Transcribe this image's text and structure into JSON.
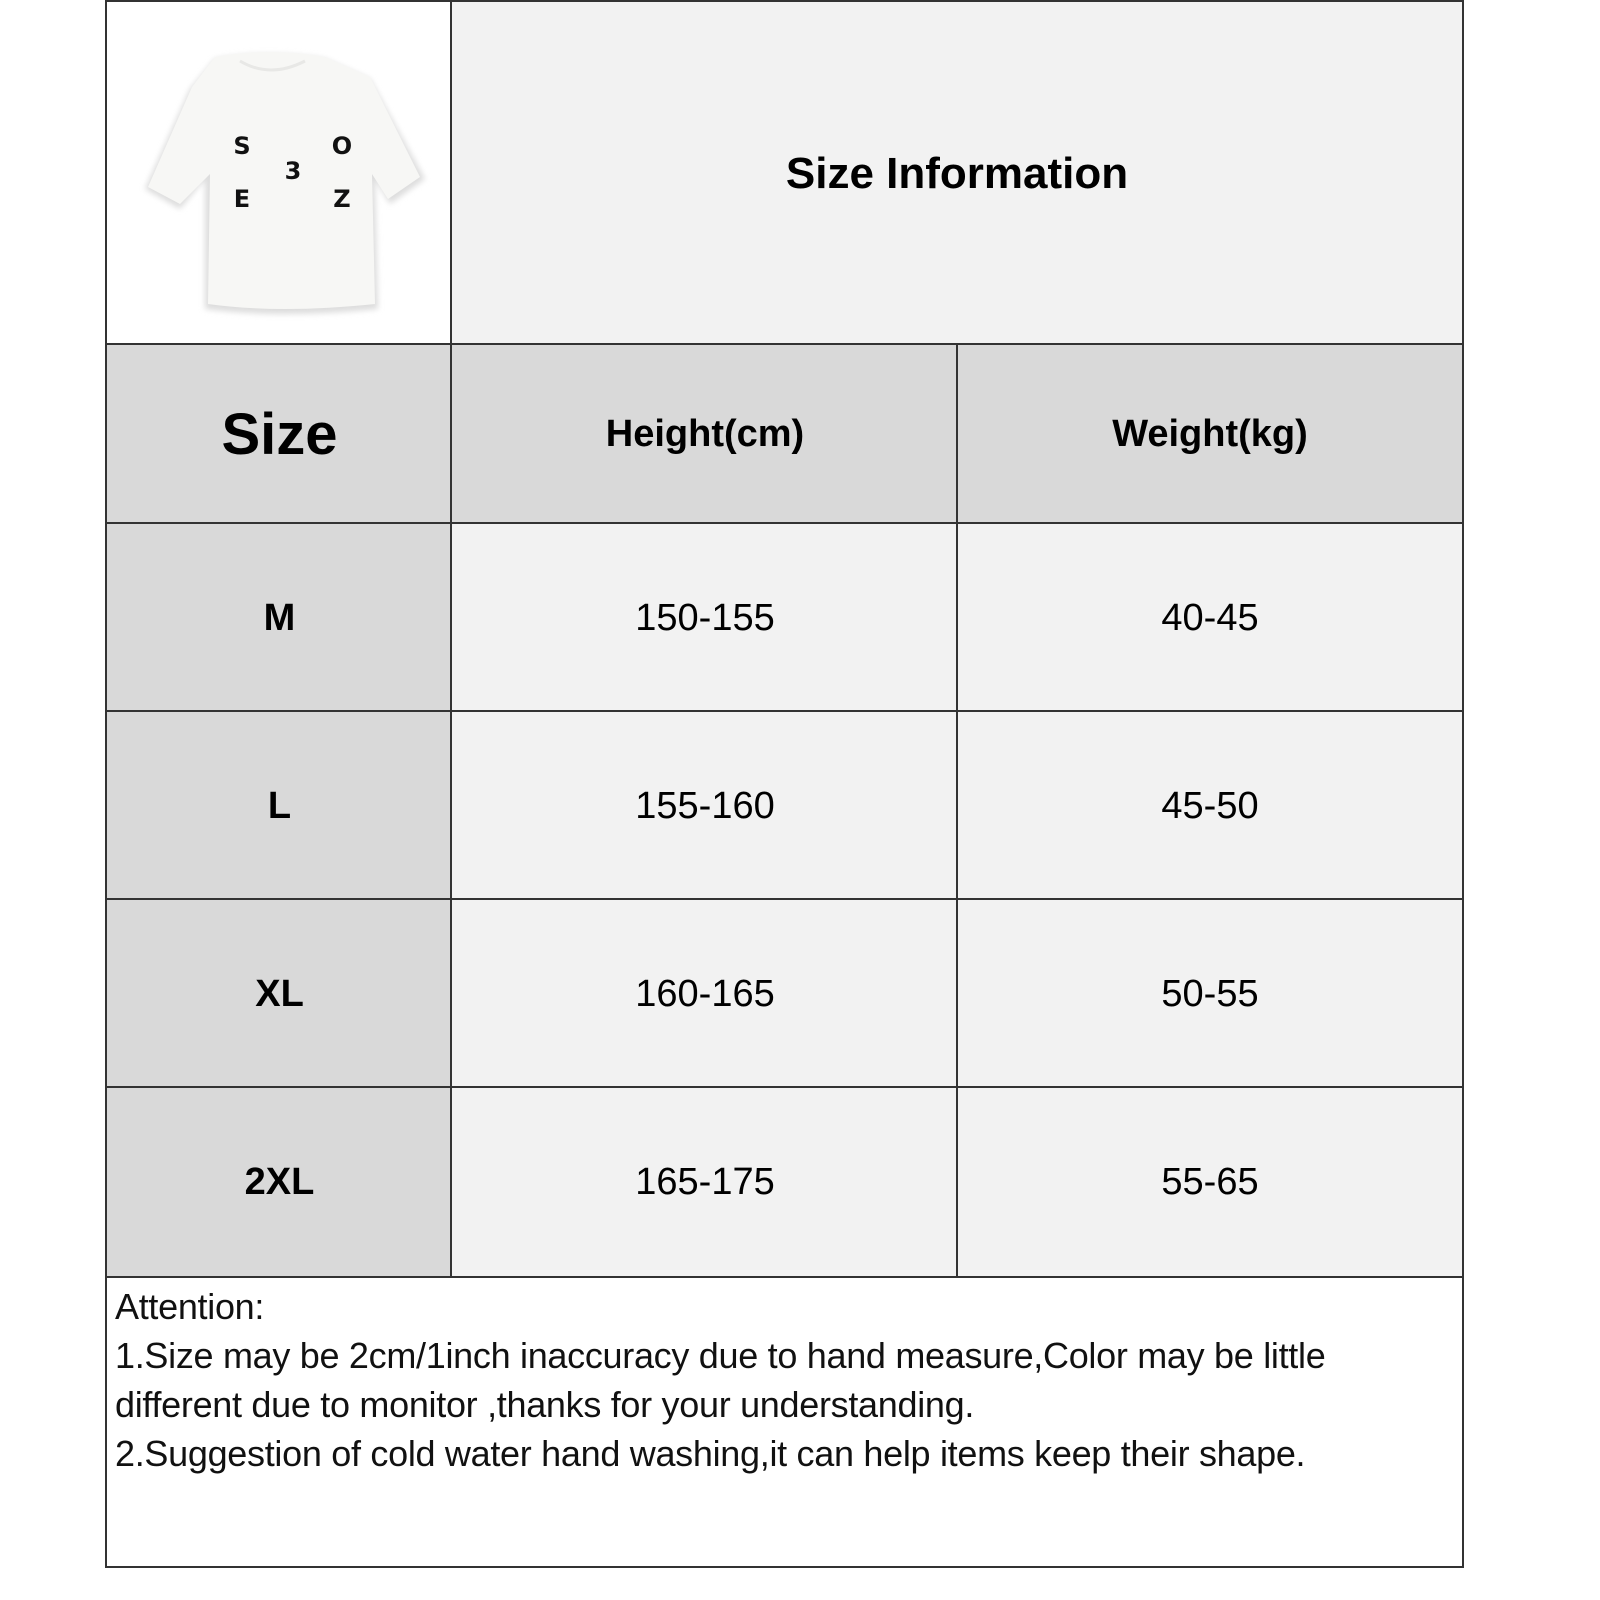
{
  "product_image": {
    "alt": "white t-shirt",
    "print_letters": [
      "S",
      "O",
      "3",
      "E",
      "Z"
    ]
  },
  "title": "Size Information",
  "table": {
    "headers": [
      "Size",
      "Height(cm)",
      "Weight(kg)"
    ],
    "rows": [
      {
        "size": "M",
        "height": "150-155",
        "weight": "40-45"
      },
      {
        "size": "L",
        "height": "155-160",
        "weight": "45-50"
      },
      {
        "size": "XL",
        "height": "160-165",
        "weight": "50-55"
      },
      {
        "size": "2XL",
        "height": "165-175",
        "weight": "55-65"
      }
    ]
  },
  "notes": {
    "heading": "Attention:",
    "lines": [
      "1.Size may be 2cm/1inch inaccuracy due to hand measure,Color may be little different due to monitor ,thanks for your understanding.",
      "2.Suggestion of cold water hand washing,it can help items keep their shape."
    ]
  },
  "colors": {
    "header_bg": "#d9d9d9",
    "cell_bg": "#f2f2f2",
    "border": "#333333"
  }
}
